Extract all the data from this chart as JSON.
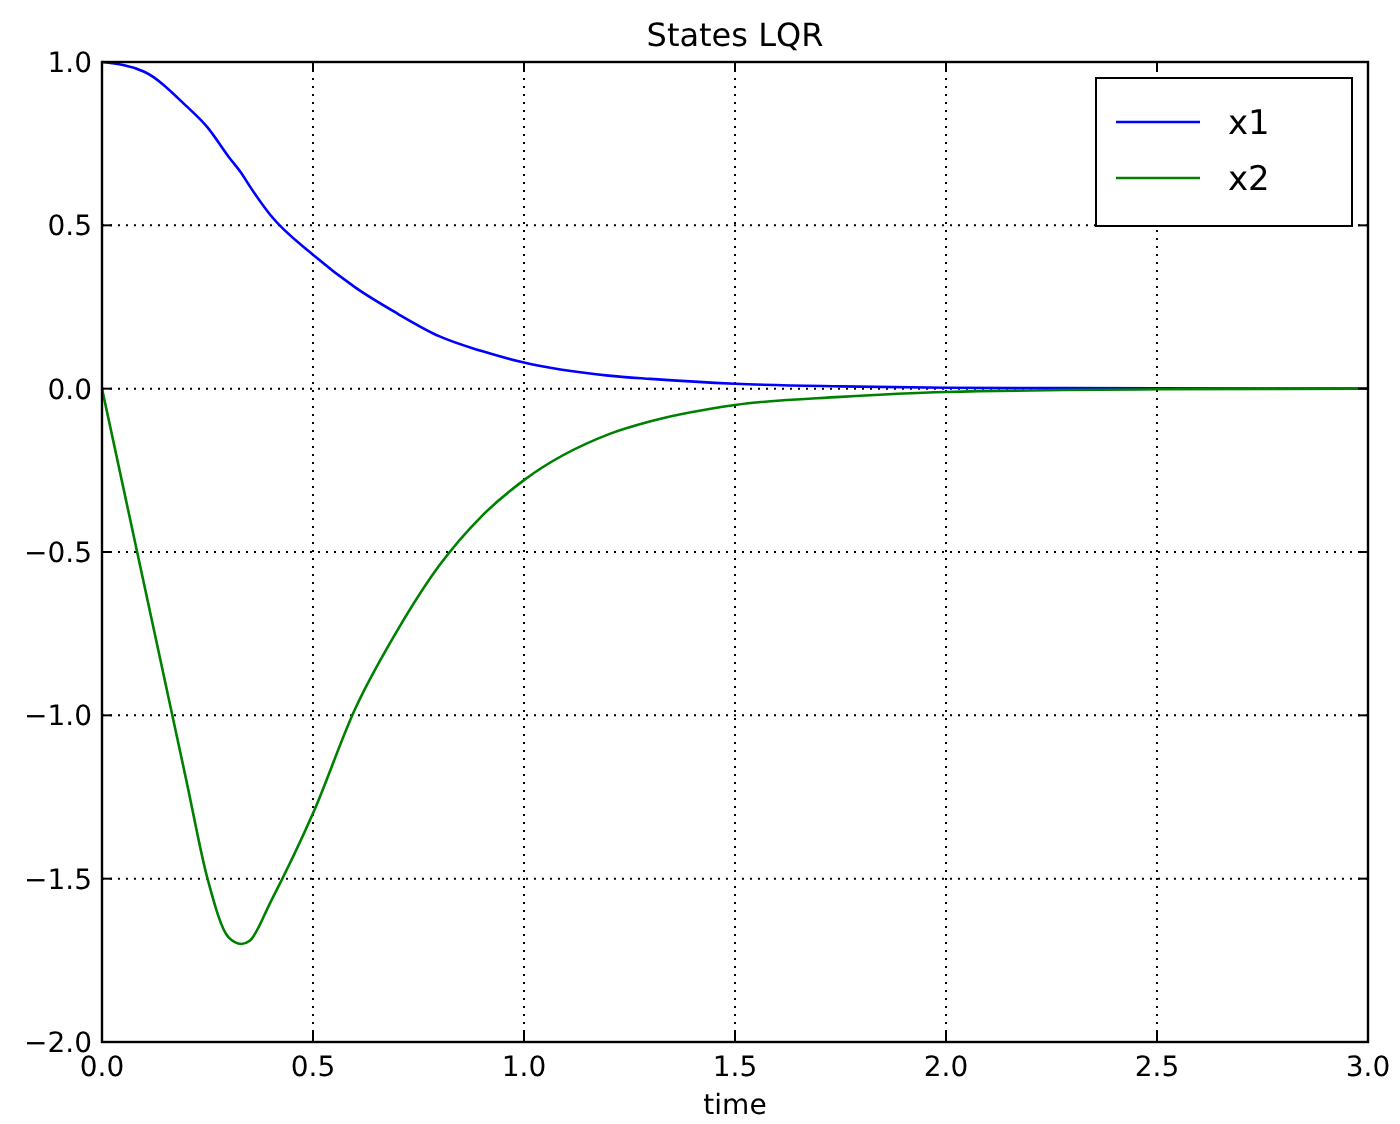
{
  "chart_data": {
    "type": "line",
    "title": "States LQR",
    "xlabel": "time",
    "x": [
      0,
      0.1,
      0.2,
      0.25,
      0.3,
      0.33,
      0.35,
      0.4,
      0.5,
      0.6,
      0.7,
      0.8,
      0.9,
      1.0,
      1.2,
      1.3,
      1.5,
      1.75,
      2.0,
      2.5,
      3.0
    ],
    "series": [
      {
        "name": "x1",
        "color": "#0000ff",
        "values": [
          1.0,
          0.97,
          0.865,
          0.8,
          0.71,
          0.66,
          0.62,
          0.53,
          0.41,
          0.31,
          0.23,
          0.16,
          0.115,
          0.08,
          0.04,
          0.03,
          0.015,
          0.007,
          0.003,
          0.001,
          0
        ]
      },
      {
        "name": "x2",
        "color": "#008000",
        "values": [
          0,
          -0.6,
          -1.2,
          -1.5,
          -1.68,
          -1.7,
          -1.69,
          -1.57,
          -1.3,
          -0.98,
          -0.74,
          -0.54,
          -0.39,
          -0.28,
          -0.14,
          -0.1,
          -0.05,
          -0.025,
          -0.01,
          -0.002,
          0
        ]
      }
    ],
    "xlim": [
      0,
      3
    ],
    "ylim": [
      -2,
      1
    ],
    "xticks": [
      {
        "value": 0,
        "label": "0.0"
      },
      {
        "value": 0.5,
        "label": "0.5"
      },
      {
        "value": 1,
        "label": "1.0"
      },
      {
        "value": 1.5,
        "label": "1.5"
      },
      {
        "value": 2,
        "label": "2.0"
      },
      {
        "value": 2.5,
        "label": "2.5"
      },
      {
        "value": 3,
        "label": "3.0"
      }
    ],
    "yticks": [
      {
        "value": -2,
        "label": "−2.0"
      },
      {
        "value": -1.5,
        "label": "−1.5"
      },
      {
        "value": -1,
        "label": "−1.0"
      },
      {
        "value": -0.5,
        "label": "−0.5"
      },
      {
        "value": 0,
        "label": "0.0"
      },
      {
        "value": 0.5,
        "label": "0.5"
      },
      {
        "value": 1,
        "label": "1.0"
      }
    ],
    "grid": true,
    "legend": "top right",
    "line_style": "solid",
    "marker": "none"
  }
}
